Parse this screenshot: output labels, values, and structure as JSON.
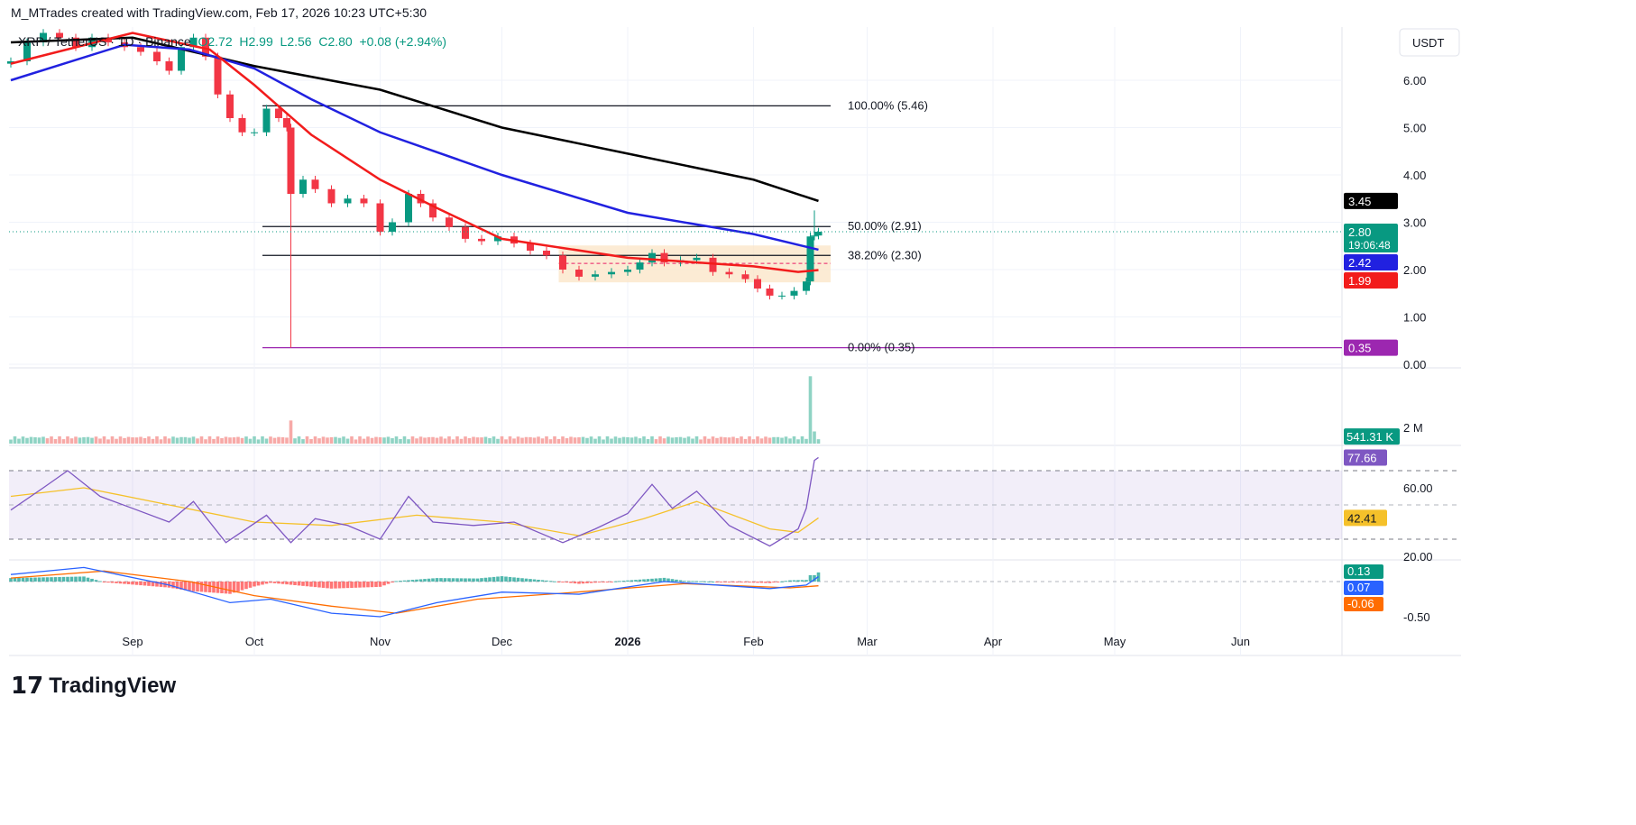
{
  "credit": "M_MTrades created with TradingView.com, Feb 17, 2026 10:23 UTC+5:30",
  "legend": {
    "symbol": "XRP / TetherUS · 1D · Binance",
    "open": "O2.72",
    "high": "H2.99",
    "low": "L2.56",
    "close": "C2.80",
    "change": "+0.08 (+2.94%)"
  },
  "currency": "USDT",
  "logo": "TradingView",
  "colors": {
    "up": "#089981",
    "down": "#f23645",
    "ma_red": "#f21c1c",
    "ma_blue": "#2121e0",
    "ma_black": "#000000",
    "rsi": "#7e57c2",
    "rsi_ma": "#f5c12a",
    "fib0": "#9c27b0"
  },
  "chart_data": {
    "type": "candlestick",
    "price_ticks": [
      "6.00",
      "5.00",
      "4.00",
      "3.00",
      "2.00",
      "1.00",
      "0.00"
    ],
    "time_ticks": [
      {
        "label": "Sep",
        "date": "2025-09-01"
      },
      {
        "label": "Oct",
        "date": "2025-10-01"
      },
      {
        "label": "Nov",
        "date": "2025-11-01"
      },
      {
        "label": "Dec",
        "date": "2025-12-01"
      },
      {
        "label": "2026",
        "date": "2026-01-01"
      },
      {
        "label": "Feb",
        "date": "2026-02-01"
      },
      {
        "label": "Mar",
        "date": "2026-03-01"
      },
      {
        "label": "Apr",
        "date": "2026-04-01"
      },
      {
        "label": "May",
        "date": "2026-05-01"
      },
      {
        "label": "Jun",
        "date": "2026-06-01"
      }
    ],
    "closes": [
      [
        "2025-08-02",
        6.4
      ],
      [
        "2025-08-06",
        6.8
      ],
      [
        "2025-08-10",
        7.0
      ],
      [
        "2025-08-14",
        6.9
      ],
      [
        "2025-08-18",
        6.7
      ],
      [
        "2025-08-22",
        6.9
      ],
      [
        "2025-08-26",
        6.8
      ],
      [
        "2025-08-30",
        6.7
      ],
      [
        "2025-09-03",
        6.6
      ],
      [
        "2025-09-07",
        6.4
      ],
      [
        "2025-09-10",
        6.2
      ],
      [
        "2025-09-13",
        6.7
      ],
      [
        "2025-09-16",
        6.9
      ],
      [
        "2025-09-19",
        6.5
      ],
      [
        "2025-09-22",
        5.7
      ],
      [
        "2025-09-25",
        5.2
      ],
      [
        "2025-09-28",
        4.9
      ],
      [
        "2025-10-01",
        4.9
      ],
      [
        "2025-10-04",
        5.4
      ],
      [
        "2025-10-07",
        5.2
      ],
      [
        "2025-10-09",
        5.0
      ],
      [
        "2025-10-10",
        3.6
      ],
      [
        "2025-10-13",
        3.9
      ],
      [
        "2025-10-16",
        3.7
      ],
      [
        "2025-10-20",
        3.4
      ],
      [
        "2025-10-24",
        3.5
      ],
      [
        "2025-10-28",
        3.4
      ],
      [
        "2025-11-01",
        2.8
      ],
      [
        "2025-11-04",
        3.0
      ],
      [
        "2025-11-08",
        3.6
      ],
      [
        "2025-11-11",
        3.4
      ],
      [
        "2025-11-14",
        3.1
      ],
      [
        "2025-11-18",
        2.9
      ],
      [
        "2025-11-22",
        2.65
      ],
      [
        "2025-11-26",
        2.6
      ],
      [
        "2025-11-30",
        2.7
      ],
      [
        "2025-12-04",
        2.55
      ],
      [
        "2025-12-08",
        2.4
      ],
      [
        "2025-12-12",
        2.3
      ],
      [
        "2025-12-16",
        2.0
      ],
      [
        "2025-12-20",
        1.85
      ],
      [
        "2025-12-24",
        1.9
      ],
      [
        "2025-12-28",
        1.95
      ],
      [
        "2026-01-01",
        2.0
      ],
      [
        "2026-01-04",
        2.15
      ],
      [
        "2026-01-07",
        2.35
      ],
      [
        "2026-01-10",
        2.15
      ],
      [
        "2026-01-14",
        2.2
      ],
      [
        "2026-01-18",
        2.25
      ],
      [
        "2026-01-22",
        1.95
      ],
      [
        "2026-01-26",
        1.9
      ],
      [
        "2026-01-30",
        1.8
      ],
      [
        "2026-02-02",
        1.6
      ],
      [
        "2026-02-05",
        1.45
      ],
      [
        "2026-02-08",
        1.45
      ],
      [
        "2026-02-11",
        1.55
      ],
      [
        "2026-02-14",
        1.75
      ],
      [
        "2026-02-15",
        2.7
      ],
      [
        "2026-02-16",
        2.72
      ],
      [
        "2026-02-17",
        2.8
      ]
    ],
    "wick_low": {
      "date": "2025-10-10",
      "low": 0.35
    },
    "ma_red": [
      [
        "2025-08-02",
        6.35
      ],
      [
        "2025-09-01",
        7.0
      ],
      [
        "2025-09-20",
        6.65
      ],
      [
        "2025-10-01",
        5.9
      ],
      [
        "2025-10-15",
        4.85
      ],
      [
        "2025-11-01",
        3.9
      ],
      [
        "2025-11-15",
        3.3
      ],
      [
        "2025-12-01",
        2.65
      ],
      [
        "2026-01-01",
        2.25
      ],
      [
        "2026-02-01",
        2.07
      ],
      [
        "2026-02-12",
        1.95
      ],
      [
        "2026-02-17",
        1.99
      ]
    ],
    "ma_blue": [
      [
        "2025-08-02",
        6.0
      ],
      [
        "2025-08-30",
        6.75
      ],
      [
        "2025-09-15",
        6.65
      ],
      [
        "2025-10-01",
        6.25
      ],
      [
        "2025-10-15",
        5.6
      ],
      [
        "2025-11-01",
        4.9
      ],
      [
        "2025-12-01",
        4.0
      ],
      [
        "2026-01-01",
        3.2
      ],
      [
        "2026-02-01",
        2.75
      ],
      [
        "2026-02-17",
        2.42
      ]
    ],
    "ma_black": [
      [
        "2025-08-02",
        6.8
      ],
      [
        "2025-09-01",
        6.9
      ],
      [
        "2025-10-01",
        6.3
      ],
      [
        "2025-11-01",
        5.8
      ],
      [
        "2025-12-01",
        5.0
      ],
      [
        "2026-01-01",
        4.45
      ],
      [
        "2026-02-01",
        3.9
      ],
      [
        "2026-02-17",
        3.45
      ]
    ],
    "fib": [
      {
        "label": "100.00% (5.46)",
        "value": 5.46
      },
      {
        "label": "50.00% (2.91)",
        "value": 2.91
      },
      {
        "label": "38.20% (2.30)",
        "value": 2.3
      },
      {
        "label": "0.00% (0.35)",
        "value": 0.35
      }
    ],
    "fib_start": "2025-10-03",
    "fib_end": "2026-02-20",
    "zone": {
      "from": "2025-12-15",
      "to": "2026-02-20",
      "top": 2.51,
      "bottom": 1.73,
      "mid": 2.13
    },
    "price_badges": [
      {
        "text": "3.45",
        "value": 3.45,
        "bg": "#000000"
      },
      {
        "text": "2.80",
        "sub": "19:06:48",
        "value": 2.8,
        "bg": "#089981"
      },
      {
        "text": "2.42",
        "value": 2.42,
        "bg": "#2121e0"
      },
      {
        "text": "1.99",
        "value": 1.99,
        "bg": "#f21c1c"
      },
      {
        "text": "0.35",
        "value": 0.35,
        "bg": "#9c27b0"
      }
    ],
    "volume": {
      "tick": "2 M",
      "badge": "541.31 K",
      "spike_date": "2026-02-15",
      "spike_m": 8.3,
      "last_m": 0.54
    },
    "rsi": {
      "ticks": [
        "60.00",
        "20.00"
      ],
      "badge": "77.66",
      "ma_badge": "42.41",
      "values": [
        [
          "2025-08-02",
          47
        ],
        [
          "2025-08-10",
          60
        ],
        [
          "2025-08-16",
          70
        ],
        [
          "2025-08-24",
          55
        ],
        [
          "2025-09-01",
          48
        ],
        [
          "2025-09-10",
          40
        ],
        [
          "2025-09-16",
          52
        ],
        [
          "2025-09-24",
          28
        ],
        [
          "2025-10-04",
          44
        ],
        [
          "2025-10-10",
          28
        ],
        [
          "2025-10-16",
          42
        ],
        [
          "2025-10-24",
          38
        ],
        [
          "2025-11-01",
          30
        ],
        [
          "2025-11-08",
          55
        ],
        [
          "2025-11-14",
          40
        ],
        [
          "2025-11-24",
          38
        ],
        [
          "2025-12-04",
          40
        ],
        [
          "2025-12-16",
          28
        ],
        [
          "2025-12-24",
          36
        ],
        [
          "2026-01-01",
          45
        ],
        [
          "2026-01-07",
          62
        ],
        [
          "2026-01-12",
          48
        ],
        [
          "2026-01-18",
          58
        ],
        [
          "2026-01-26",
          38
        ],
        [
          "2026-02-05",
          26
        ],
        [
          "2026-02-12",
          36
        ],
        [
          "2026-02-14",
          48
        ],
        [
          "2026-02-16",
          76
        ],
        [
          "2026-02-17",
          77.66
        ]
      ],
      "ma": [
        [
          "2025-08-02",
          55
        ],
        [
          "2025-08-20",
          60
        ],
        [
          "2025-09-10",
          50
        ],
        [
          "2025-10-01",
          40
        ],
        [
          "2025-10-20",
          38
        ],
        [
          "2025-11-10",
          44
        ],
        [
          "2025-12-01",
          40
        ],
        [
          "2025-12-20",
          32
        ],
        [
          "2026-01-05",
          42
        ],
        [
          "2026-01-18",
          52
        ],
        [
          "2026-02-05",
          36
        ],
        [
          "2026-02-12",
          34
        ],
        [
          "2026-02-17",
          42.41
        ]
      ]
    },
    "macd": {
      "badges": [
        {
          "text": "0.13",
          "value": 0.13,
          "bg": "#089981"
        },
        {
          "text": "0.07",
          "value": 0.07,
          "bg": "#2962ff"
        },
        {
          "text": "-0.06",
          "value": -0.06,
          "bg": "#ff6d00"
        }
      ],
      "tick": "-0.50",
      "macd": [
        [
          "2025-08-02",
          0.1
        ],
        [
          "2025-08-20",
          0.2
        ],
        [
          "2025-09-10",
          -0.05
        ],
        [
          "2025-09-25",
          -0.3
        ],
        [
          "2025-10-05",
          -0.25
        ],
        [
          "2025-10-20",
          -0.45
        ],
        [
          "2025-11-01",
          -0.5
        ],
        [
          "2025-11-15",
          -0.3
        ],
        [
          "2025-12-01",
          -0.15
        ],
        [
          "2025-12-20",
          -0.18
        ],
        [
          "2026-01-10",
          0.0
        ],
        [
          "2026-02-05",
          -0.1
        ],
        [
          "2026-02-14",
          -0.05
        ],
        [
          "2026-02-17",
          0.07
        ]
      ],
      "signal": [
        [
          "2025-08-02",
          0.05
        ],
        [
          "2025-08-25",
          0.15
        ],
        [
          "2025-09-15",
          0.0
        ],
        [
          "2025-10-01",
          -0.2
        ],
        [
          "2025-10-20",
          -0.35
        ],
        [
          "2025-11-05",
          -0.45
        ],
        [
          "2025-11-25",
          -0.25
        ],
        [
          "2025-12-15",
          -0.17
        ],
        [
          "2026-01-15",
          -0.03
        ],
        [
          "2026-02-10",
          -0.09
        ],
        [
          "2026-02-17",
          -0.06
        ]
      ]
    }
  }
}
